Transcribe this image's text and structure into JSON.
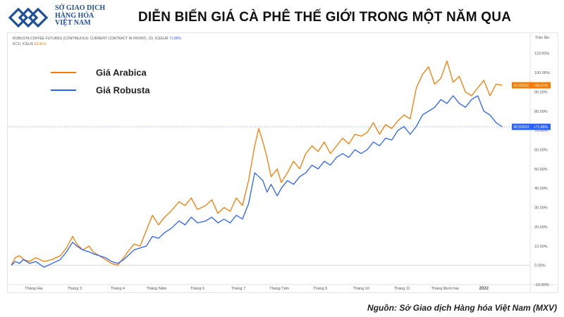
{
  "logo": {
    "lines": [
      "SỞ GIAO DỊCH",
      "HÀNG HÓA",
      "VIỆT NAM"
    ]
  },
  "title": "DIỄN BIẾN GIÁ CÀ PHÊ THẾ GIỚI TRONG MỘT NĂM QUA",
  "chart_info": {
    "line1_prefix": "ROBUSTA COFFEE FUTURES (CONTINUOUS: CURRENT CONTRACT IN FRONT), 1D, ICEEUR",
    "line1_value": "71.86%",
    "line2_prefix": "KC1!, ICEUS",
    "line2_value": "93.41%"
  },
  "source": "Nguồn: Sở Giao dịch Hàng hóa Việt Nam (MXV)",
  "colors": {
    "arabica": "#f57c00",
    "robusta": "#2962ff",
    "title": "#111111",
    "logo": "#1d4f9a"
  },
  "chart_data": {
    "type": "line",
    "title": "DIỄN BIẾN GIÁ CÀ PHÊ THẾ GIỚI TRONG MỘT NĂM QUA",
    "ylabel": "",
    "axis_unit_label": "Trộn lẫn",
    "ylim": [
      -10,
      115
    ],
    "ytick_labels": [
      "110.00%",
      "100.00%",
      "90.00%",
      "80.00%",
      "70.00%",
      "60.00%",
      "50.00%",
      "40.00%",
      "30.00%",
      "20.00%",
      "10.00%",
      "0.00%",
      "-10.00%"
    ],
    "ytick_values": [
      110,
      100,
      90,
      80,
      70,
      60,
      50,
      40,
      30,
      20,
      10,
      0,
      -10
    ],
    "xlim": [
      0,
      12.2
    ],
    "xtick_labels": [
      "Tháng Hai",
      "Tháng 3",
      "Tháng 4",
      "Tháng Năm",
      "Tháng 6",
      "Tháng 7",
      "Tháng Tám",
      "Tháng 9",
      "Tháng 10",
      "Tháng 11",
      "Tháng Mười hai",
      "2022"
    ],
    "xtick_values": [
      0.55,
      1.55,
      2.6,
      3.55,
      4.55,
      5.55,
      6.55,
      7.55,
      8.55,
      9.55,
      10.6,
      11.55
    ],
    "legend": {
      "position": "top-left",
      "entries": [
        "Giá Arabica",
        "Giá Robusta"
      ]
    },
    "last_value_labels": {
      "arabica": {
        "ticker": "KCH2022",
        "value": "+93.41%"
      },
      "robusta": {
        "ticker": "RCH2022",
        "value": "+71.86%"
      }
    },
    "reference_line_value": 71.86,
    "grid": false,
    "series": [
      {
        "name": "Giá Arabica",
        "color": "#f57c00",
        "x": [
          0,
          0.1,
          0.2,
          0.3,
          0.45,
          0.6,
          0.8,
          1.0,
          1.2,
          1.35,
          1.5,
          1.6,
          1.75,
          1.9,
          2.0,
          2.15,
          2.3,
          2.45,
          2.6,
          2.75,
          2.85,
          3.0,
          3.15,
          3.3,
          3.45,
          3.6,
          3.75,
          3.9,
          4.1,
          4.25,
          4.4,
          4.55,
          4.75,
          4.9,
          5.05,
          5.2,
          5.35,
          5.5,
          5.65,
          5.8,
          5.95,
          6.05,
          6.15,
          6.25,
          6.35,
          6.5,
          6.6,
          6.75,
          6.9,
          7.05,
          7.2,
          7.35,
          7.5,
          7.65,
          7.8,
          7.95,
          8.1,
          8.25,
          8.4,
          8.55,
          8.7,
          8.85,
          9.0,
          9.15,
          9.3,
          9.45,
          9.6,
          9.75,
          9.9,
          10.05,
          10.2,
          10.35,
          10.5,
          10.65,
          10.8,
          10.95,
          11.1,
          11.25,
          11.4,
          11.55,
          11.7,
          11.85,
          12.0
        ],
        "y": [
          0,
          4,
          5,
          3,
          2,
          4,
          2,
          3,
          5,
          9,
          15,
          11,
          8,
          10,
          7,
          5,
          3,
          1,
          0,
          4,
          7,
          11,
          10,
          18,
          26,
          21,
          25,
          28,
          33,
          31,
          35,
          29,
          31,
          34,
          27,
          30,
          28,
          35,
          31,
          44,
          62,
          71,
          64,
          56,
          46,
          50,
          43,
          48,
          54,
          50,
          58,
          62,
          59,
          64,
          58,
          62,
          66,
          63,
          68,
          67,
          69,
          74,
          68,
          73,
          71,
          75,
          78,
          76,
          92,
          99,
          103,
          94,
          97,
          106,
          95,
          98,
          90,
          88,
          92,
          96,
          88,
          94,
          93.41
        ]
      },
      {
        "name": "Giá Robusta",
        "color": "#2962ff",
        "x": [
          0,
          0.1,
          0.2,
          0.3,
          0.45,
          0.6,
          0.8,
          1.0,
          1.2,
          1.35,
          1.5,
          1.6,
          1.75,
          1.9,
          2.0,
          2.15,
          2.3,
          2.45,
          2.6,
          2.75,
          2.85,
          3.0,
          3.15,
          3.3,
          3.45,
          3.6,
          3.75,
          3.9,
          4.1,
          4.25,
          4.4,
          4.55,
          4.75,
          4.9,
          5.05,
          5.2,
          5.35,
          5.5,
          5.65,
          5.8,
          5.95,
          6.05,
          6.15,
          6.25,
          6.35,
          6.5,
          6.6,
          6.75,
          6.9,
          7.05,
          7.2,
          7.35,
          7.5,
          7.65,
          7.8,
          7.95,
          8.1,
          8.25,
          8.4,
          8.55,
          8.7,
          8.85,
          9.0,
          9.15,
          9.3,
          9.45,
          9.6,
          9.75,
          9.9,
          10.05,
          10.2,
          10.35,
          10.5,
          10.65,
          10.8,
          10.95,
          11.1,
          11.25,
          11.4,
          11.55,
          11.7,
          11.85,
          12.0
        ],
        "y": [
          0,
          2,
          1,
          3,
          1,
          2,
          -1,
          1,
          3,
          7,
          12,
          10,
          8,
          7,
          6,
          5,
          4,
          2,
          1,
          3,
          5,
          8,
          9,
          10,
          15,
          14,
          17,
          19,
          23,
          21,
          25,
          22,
          23,
          25,
          22,
          24,
          22,
          26,
          24,
          32,
          48,
          46,
          44,
          38,
          42,
          36,
          40,
          44,
          42,
          46,
          48,
          52,
          50,
          54,
          52,
          56,
          58,
          56,
          60,
          58,
          60,
          64,
          62,
          66,
          65,
          70,
          72,
          68,
          72,
          78,
          80,
          82,
          86,
          84,
          88,
          84,
          82,
          86,
          88,
          80,
          78,
          74,
          71.86
        ]
      }
    ]
  }
}
